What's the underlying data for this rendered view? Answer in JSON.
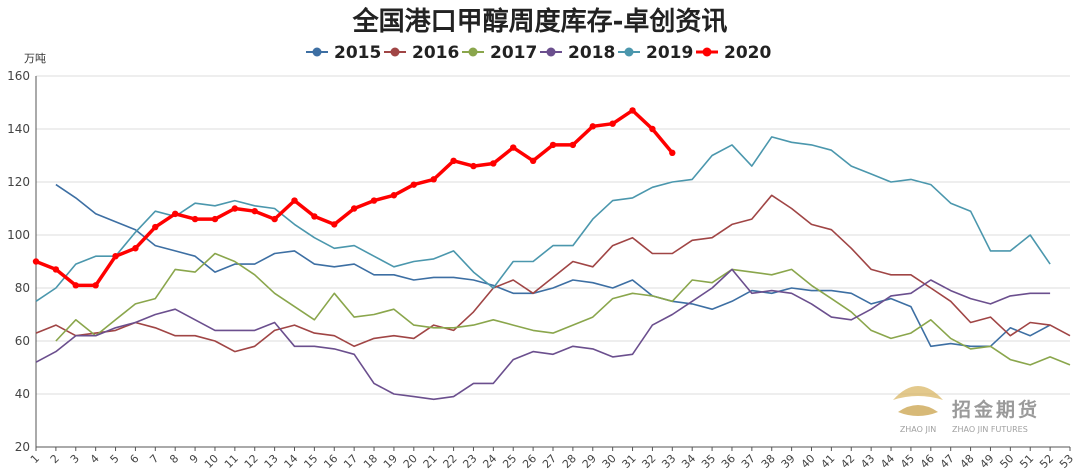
{
  "chart_data": {
    "type": "line",
    "title": "全国港口甲醇周度库存-卓创资讯",
    "ylabel": "万吨",
    "xlabel": "",
    "ylim": [
      20,
      160
    ],
    "yticks": [
      20,
      40,
      60,
      80,
      100,
      120,
      140,
      160
    ],
    "categories": [
      "1",
      "2",
      "3",
      "4",
      "5",
      "6",
      "7",
      "8",
      "9",
      "10",
      "11",
      "12",
      "13",
      "14",
      "15",
      "16",
      "17",
      "18",
      "19",
      "20",
      "21",
      "22",
      "23",
      "24",
      "25",
      "26",
      "27",
      "28",
      "29",
      "30",
      "31",
      "32",
      "33",
      "34",
      "35",
      "36",
      "37",
      "38",
      "39",
      "40",
      "41",
      "42",
      "43",
      "44",
      "45",
      "46",
      "47",
      "48",
      "49",
      "50",
      "51",
      "52",
      "53"
    ],
    "legend_position": "top-center",
    "grid": true,
    "series": [
      {
        "name": "2015",
        "color": "#3d6fa3",
        "values": [
          null,
          119,
          114,
          108,
          105,
          102,
          96,
          94,
          92,
          86,
          89,
          89,
          93,
          94,
          89,
          88,
          89,
          85,
          85,
          83,
          84,
          84,
          83,
          81,
          78,
          78,
          80,
          83,
          82,
          80,
          83,
          77,
          75,
          74,
          72,
          75,
          79,
          78,
          80,
          79,
          79,
          78,
          74,
          76,
          73,
          58,
          59,
          58,
          58,
          65,
          62,
          66,
          null
        ]
      },
      {
        "name": "2016",
        "color": "#a04545",
        "values": [
          63,
          66,
          62,
          63,
          64,
          67,
          65,
          62,
          62,
          60,
          56,
          58,
          64,
          66,
          63,
          62,
          58,
          61,
          62,
          61,
          66,
          64,
          71,
          80,
          83,
          78,
          84,
          90,
          88,
          96,
          99,
          93,
          93,
          98,
          99,
          104,
          106,
          115,
          110,
          104,
          102,
          95,
          87,
          85,
          85,
          80,
          75,
          67,
          69,
          62,
          67,
          66,
          62
        ]
      },
      {
        "name": "2017",
        "color": "#8aa64c",
        "values": [
          null,
          60,
          68,
          62,
          68,
          74,
          76,
          87,
          86,
          93,
          90,
          85,
          78,
          73,
          68,
          78,
          69,
          70,
          72,
          66,
          65,
          65,
          66,
          68,
          66,
          64,
          63,
          66,
          69,
          76,
          78,
          77,
          75,
          83,
          82,
          87,
          86,
          85,
          87,
          81,
          76,
          71,
          64,
          61,
          63,
          68,
          61,
          57,
          58,
          53,
          51,
          54,
          51
        ]
      },
      {
        "name": "2018",
        "color": "#6b4f8e",
        "values": [
          52,
          56,
          62,
          62,
          65,
          67,
          70,
          72,
          68,
          64,
          64,
          64,
          67,
          58,
          58,
          57,
          55,
          44,
          40,
          39,
          38,
          39,
          44,
          44,
          53,
          56,
          55,
          58,
          57,
          54,
          55,
          66,
          70,
          75,
          80,
          87,
          78,
          79,
          78,
          74,
          69,
          68,
          72,
          77,
          78,
          83,
          79,
          76,
          74,
          77,
          78,
          78,
          null
        ]
      },
      {
        "name": "2019",
        "color": "#4b97ad",
        "values": [
          75,
          80,
          89,
          92,
          92,
          101,
          109,
          107,
          112,
          111,
          113,
          111,
          110,
          104,
          99,
          95,
          96,
          92,
          88,
          90,
          91,
          94,
          86,
          80,
          90,
          90,
          96,
          96,
          106,
          113,
          114,
          118,
          120,
          121,
          130,
          134,
          126,
          137,
          135,
          134,
          132,
          126,
          123,
          120,
          121,
          119,
          112,
          109,
          94,
          94,
          100,
          89,
          null
        ]
      },
      {
        "name": "2020",
        "color": "#ff0000",
        "values": [
          90,
          87,
          81,
          81,
          92,
          95,
          103,
          108,
          106,
          106,
          110,
          109,
          106,
          113,
          107,
          104,
          110,
          113,
          115,
          119,
          121,
          128,
          126,
          127,
          133,
          128,
          134,
          134,
          141,
          142,
          147,
          140,
          131,
          null,
          null,
          null,
          null,
          null,
          null,
          null,
          null,
          null,
          null,
          null,
          null,
          null,
          null,
          null,
          null,
          null,
          null,
          null,
          null
        ]
      }
    ]
  },
  "watermark": {
    "cn": "招金期货",
    "en": "ZHAO JIN FUTURES",
    "logo_small": "ZHAO JIN",
    "logo_color": "#c9a24a"
  }
}
